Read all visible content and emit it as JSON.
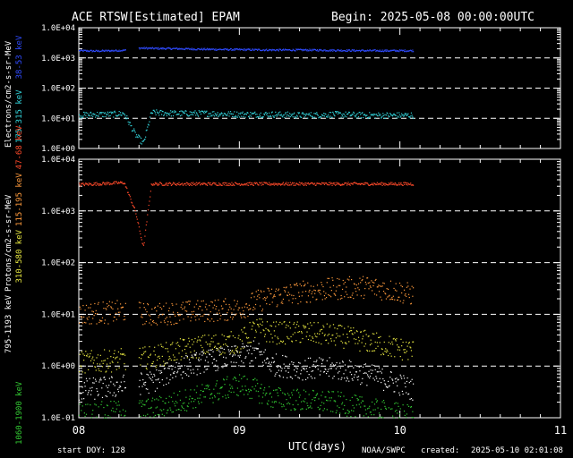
{
  "header": {
    "title": "ACE RTSW[Estimated] EPAM",
    "begin": "Begin: 2025-05-08 00:00:00UTC"
  },
  "footer": {
    "start_doy": "start DOY:  128",
    "xlabel": "UTC(days)",
    "source": "NOAA/SWPC",
    "created_label": "created:",
    "created_value": "2025-05-10 02:01:08"
  },
  "colors": {
    "background": "#000000",
    "axes": "#ffffff",
    "e_38_53": "#2f4bff",
    "e_175_315": "#33d6dd",
    "p_47_68": "#ff4a2a",
    "p_115_195": "#ff9a3c",
    "p_310_580": "#e6e640",
    "p_795_1193": "#ffffff",
    "p_1060_1900": "#33cc33"
  },
  "chart_data": [
    {
      "type": "scatter",
      "panel": "electrons",
      "ylabel": "Electrons/cm2-s-sr-MeV",
      "yscale": "log",
      "ylim": [
        1,
        10000
      ],
      "ytick_labels": [
        "1.0E+04",
        "1.0E+03",
        "1.0E+02",
        "1.0E+01",
        "1.0E+00"
      ],
      "xlim": [
        8,
        11
      ],
      "xtick_labels": [
        "08",
        "09",
        "10",
        "11"
      ],
      "dashed_grid_levels": [
        1000,
        100,
        10
      ],
      "series": [
        {
          "name": "38-53 keV",
          "color_key": "e_38_53",
          "x": [
            8.0,
            8.1,
            8.2,
            8.28,
            8.38,
            8.45,
            8.6,
            8.8,
            9.0,
            9.2,
            9.4,
            9.6,
            9.8,
            10.0,
            10.08
          ],
          "y": [
            1800,
            1750,
            1800,
            1850,
            2200,
            2150,
            2100,
            2000,
            1950,
            1900,
            1900,
            1850,
            1800,
            1800,
            1800
          ]
        },
        {
          "name": "175-315 keV",
          "color_key": "e_175_315",
          "x": [
            8.0,
            8.1,
            8.2,
            8.28,
            8.35,
            8.4,
            8.45,
            8.6,
            8.8,
            9.0,
            9.2,
            9.4,
            9.6,
            9.8,
            10.0,
            10.08
          ],
          "y": [
            13,
            14,
            14,
            15,
            3,
            1.5,
            16,
            15,
            15,
            14,
            14,
            13,
            14,
            13,
            13,
            13
          ]
        }
      ]
    },
    {
      "type": "scatter",
      "panel": "protons",
      "ylabel": "Protons/cm2-s-sr-MeV",
      "yscale": "log",
      "ylim": [
        0.1,
        10000
      ],
      "ytick_labels": [
        "1.0E+04",
        "1.0E+03",
        "1.0E+02",
        "1.0E+01",
        "1.0E+00",
        "1.0E-01"
      ],
      "xlim": [
        8,
        11
      ],
      "xtick_labels": [
        "08",
        "09",
        "10",
        "11"
      ],
      "dashed_grid_levels": [
        1000,
        100,
        10,
        1
      ],
      "series": [
        {
          "name": "47-68 keV",
          "color_key": "p_47_68",
          "x": [
            8.0,
            8.1,
            8.2,
            8.28,
            8.35,
            8.4,
            8.45,
            8.6,
            8.8,
            9.0,
            9.2,
            9.4,
            9.6,
            9.8,
            10.0,
            10.08
          ],
          "y": [
            3300,
            3400,
            3500,
            3600,
            1000,
            200,
            3400,
            3400,
            3400,
            3400,
            3400,
            3400,
            3400,
            3400,
            3400,
            3400
          ]
        },
        {
          "name": "115-195 keV",
          "color_key": "p_115_195",
          "x": [
            8.0,
            8.1,
            8.2,
            8.28,
            8.45,
            8.6,
            8.8,
            9.0,
            9.1,
            9.2,
            9.4,
            9.6,
            9.8,
            10.0,
            10.08
          ],
          "y": [
            10,
            11,
            11,
            12,
            10,
            11,
            12,
            13,
            18,
            22,
            28,
            32,
            35,
            28,
            24
          ]
        },
        {
          "name": "310-580 keV",
          "color_key": "p_310_580",
          "x": [
            8.0,
            8.2,
            8.45,
            8.6,
            8.8,
            9.0,
            9.1,
            9.2,
            9.4,
            9.6,
            9.8,
            10.0,
            10.08
          ],
          "y": [
            1.2,
            1.3,
            1.5,
            2.0,
            2.6,
            3.0,
            5.5,
            4.5,
            4.5,
            4.0,
            3.0,
            2.2,
            2.0
          ]
        },
        {
          "name": "795-1193 keV",
          "color_key": "p_795_1193",
          "x": [
            8.0,
            8.2,
            8.45,
            8.6,
            8.8,
            9.0,
            9.1,
            9.2,
            9.4,
            9.6,
            9.8,
            10.0,
            10.08
          ],
          "y": [
            0.35,
            0.4,
            0.5,
            0.9,
            1.3,
            1.6,
            2.0,
            1.1,
            0.9,
            0.9,
            0.7,
            0.45,
            0.35
          ]
        },
        {
          "name": "1060-1900 keV",
          "color_key": "p_1060_1900",
          "x": [
            8.0,
            8.2,
            8.45,
            8.6,
            8.8,
            9.0,
            9.1,
            9.2,
            9.4,
            9.6,
            9.8,
            10.0,
            10.08
          ],
          "y": [
            0.12,
            0.13,
            0.15,
            0.2,
            0.3,
            0.45,
            0.35,
            0.25,
            0.22,
            0.2,
            0.15,
            0.12,
            0.11
          ]
        }
      ]
    }
  ]
}
